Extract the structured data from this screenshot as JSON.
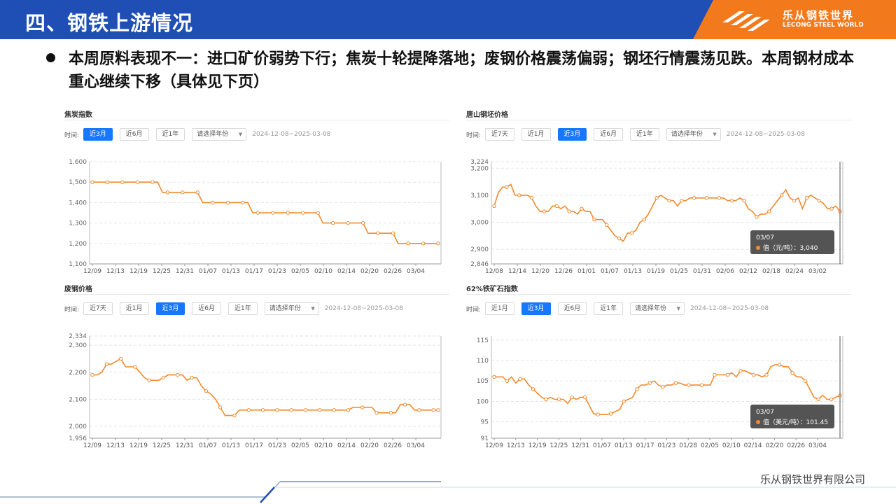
{
  "header": {
    "title": "四、钢铁上游情况"
  },
  "logo": {
    "name": "乐从钢铁世界",
    "sub": "LECONG STEEL WORLD"
  },
  "bullet": "本周原料表现不一：进口矿价弱势下行；焦炭十轮提降落地；废钢价格震荡偏弱；钢坯行情震荡见跌。本周钢材成本重心继续下移（具体见下页）",
  "toolbar": {
    "label": "时间:",
    "select_placeholder": "请选择年份",
    "date_range": "2024-12-08~2025-03-08"
  },
  "footer": "乐从钢铁世界有限公司",
  "colors": {
    "line": "#f28a2c",
    "active_button": "#1677ff",
    "header": "#1f4fb4",
    "accent": "#f27a1d"
  },
  "chart_data": [
    {
      "id": "coke",
      "type": "line",
      "title": "焦炭指数",
      "buttons": [
        {
          "label": "近3月",
          "active": true
        },
        {
          "label": "近6月",
          "active": false
        },
        {
          "label": "近1年",
          "active": false
        }
      ],
      "ylim": [
        1100,
        1600
      ],
      "yticks": [
        1100,
        1200,
        1300,
        1400,
        1500,
        1600
      ],
      "ytick_labels": [
        "1,100",
        "1,200",
        "1,300",
        "1,400",
        "1,500",
        "1,600"
      ],
      "xticks": [
        "12/09",
        "12/13",
        "12/19",
        "12/25",
        "12/31",
        "01/07",
        "01/13",
        "01/17",
        "01/23",
        "02/05",
        "02/10",
        "02/14",
        "02/20",
        "02/26",
        "03/04"
      ],
      "values": [
        1500,
        1500,
        1500,
        1500,
        1500,
        1500,
        1500,
        1500,
        1500,
        1500,
        1500,
        1500,
        1500,
        1500,
        1450,
        1450,
        1450,
        1450,
        1450,
        1450,
        1450,
        1450,
        1400,
        1400,
        1400,
        1400,
        1400,
        1400,
        1400,
        1400,
        1400,
        1400,
        1350,
        1350,
        1350,
        1350,
        1350,
        1350,
        1350,
        1350,
        1350,
        1350,
        1350,
        1350,
        1350,
        1350,
        1300,
        1300,
        1300,
        1300,
        1300,
        1300,
        1300,
        1300,
        1300,
        1250,
        1250,
        1250,
        1250,
        1250,
        1250,
        1200,
        1200,
        1200,
        1200,
        1200,
        1200,
        1200,
        1200,
        1200
      ]
    },
    {
      "id": "billet",
      "type": "line",
      "title": "唐山钢坯价格",
      "buttons": [
        {
          "label": "近7天",
          "active": false
        },
        {
          "label": "近1月",
          "active": false
        },
        {
          "label": "近3月",
          "active": true
        },
        {
          "label": "近6月",
          "active": false
        },
        {
          "label": "近1年",
          "active": false
        }
      ],
      "ylim": [
        2846,
        3224
      ],
      "yticks": [
        2846,
        2900,
        3000,
        3100,
        3200,
        3224
      ],
      "ytick_labels": [
        "2,846",
        "2,900",
        "3,000",
        "3,100",
        "3,200",
        "3,224"
      ],
      "xticks": [
        "12/08",
        "12/14",
        "12/20",
        "12/26",
        "01/01",
        "01/07",
        "01/13",
        "01/19",
        "01/25",
        "01/31",
        "02/06",
        "02/12",
        "02/18",
        "02/24",
        "03/02"
      ],
      "values": [
        3060,
        3110,
        3130,
        3130,
        3140,
        3100,
        3100,
        3100,
        3100,
        3090,
        3060,
        3040,
        3040,
        3040,
        3060,
        3060,
        3050,
        3060,
        3040,
        3040,
        3030,
        3050,
        3040,
        3040,
        3010,
        3010,
        3010,
        2990,
        2970,
        2950,
        2940,
        2930,
        2960,
        2960,
        2970,
        3000,
        3010,
        3030,
        3060,
        3090,
        3100,
        3090,
        3080,
        3080,
        3060,
        3080,
        3080,
        3090,
        3090,
        3090,
        3090,
        3090,
        3090,
        3090,
        3090,
        3090,
        3080,
        3080,
        3080,
        3090,
        3080,
        3050,
        3040,
        3020,
        3030,
        3030,
        3040,
        3060,
        3080,
        3100,
        3120,
        3090,
        3080,
        3090,
        3050,
        3090,
        3100,
        3090,
        3080,
        3070,
        3050,
        3050,
        3060,
        3040
      ],
      "tooltip": {
        "date": "03/07",
        "label": "值（元/吨）：3,040"
      }
    },
    {
      "id": "scrap",
      "type": "line",
      "title": "废钢价格",
      "buttons": [
        {
          "label": "近7天",
          "active": false
        },
        {
          "label": "近1月",
          "active": false
        },
        {
          "label": "近3月",
          "active": true
        },
        {
          "label": "近6月",
          "active": false
        },
        {
          "label": "近1年",
          "active": false
        }
      ],
      "ylim": [
        1956,
        2334
      ],
      "yticks": [
        1956,
        2000,
        2100,
        2200,
        2300,
        2334
      ],
      "ytick_labels": [
        "1,956",
        "2,000",
        "2,100",
        "2,200",
        "2,300",
        "2,334"
      ],
      "xticks": [
        "12/09",
        "12/13",
        "12/19",
        "12/25",
        "12/31",
        "01/07",
        "01/13",
        "01/17",
        "01/23",
        "02/05",
        "02/10",
        "02/14",
        "02/20",
        "02/26",
        "03/04"
      ],
      "values": [
        2190,
        2190,
        2200,
        2230,
        2230,
        2240,
        2250,
        2220,
        2220,
        2220,
        2200,
        2180,
        2170,
        2170,
        2170,
        2180,
        2190,
        2190,
        2190,
        2190,
        2170,
        2180,
        2180,
        2150,
        2130,
        2120,
        2100,
        2070,
        2040,
        2040,
        2040,
        2060,
        2060,
        2060,
        2060,
        2060,
        2060,
        2060,
        2060,
        2060,
        2060,
        2060,
        2060,
        2060,
        2060,
        2060,
        2060,
        2060,
        2060,
        2060,
        2060,
        2060,
        2060,
        2060,
        2060,
        2070,
        2070,
        2070,
        2070,
        2070,
        2050,
        2050,
        2050,
        2050,
        2050,
        2080,
        2080,
        2080,
        2060,
        2060,
        2060,
        2060,
        2060,
        2060
      ]
    },
    {
      "id": "iron-ore",
      "type": "line",
      "title": "62%铁矿石指数",
      "buttons": [
        {
          "label": "近1月",
          "active": false
        },
        {
          "label": "近3月",
          "active": true
        },
        {
          "label": "近6月",
          "active": false
        },
        {
          "label": "近1年",
          "active": false
        }
      ],
      "ylim": [
        91,
        116
      ],
      "yticks": [
        91,
        95,
        100,
        105,
        110,
        115
      ],
      "ytick_labels": [
        "91",
        "95",
        "100",
        "105",
        "110",
        "115"
      ],
      "xticks": [
        "12/09",
        "12/13",
        "12/19",
        "12/25",
        "12/31",
        "01/07",
        "01/13",
        "01/17",
        "01/23",
        "01/28",
        "02/05",
        "02/10",
        "02/14",
        "02/20",
        "02/26",
        "03/04"
      ],
      "values": [
        106,
        106,
        106,
        105,
        106,
        104.5,
        105.5,
        105.5,
        104,
        103,
        102,
        101,
        100.5,
        101,
        100.5,
        100.5,
        100.5,
        99.5,
        101,
        100.5,
        101,
        101,
        99,
        97,
        96.8,
        96.8,
        96.8,
        97,
        97.5,
        98,
        100,
        100.5,
        101,
        103,
        104,
        104,
        104.5,
        105,
        104,
        103.5,
        104,
        104,
        104.5,
        104.5,
        104,
        104,
        104,
        104,
        104,
        104,
        104,
        106.5,
        106.5,
        106.5,
        106.5,
        107,
        106,
        107.5,
        107.5,
        107,
        106.5,
        106.5,
        106,
        106.5,
        108.5,
        109,
        109,
        108.5,
        108.5,
        107,
        106,
        106,
        105,
        103,
        101,
        100.5,
        101.5,
        100.5,
        100.5,
        101,
        101.45
      ],
      "tooltip": {
        "date": "03/07",
        "label": "值（美元/吨）：101.45"
      }
    }
  ]
}
